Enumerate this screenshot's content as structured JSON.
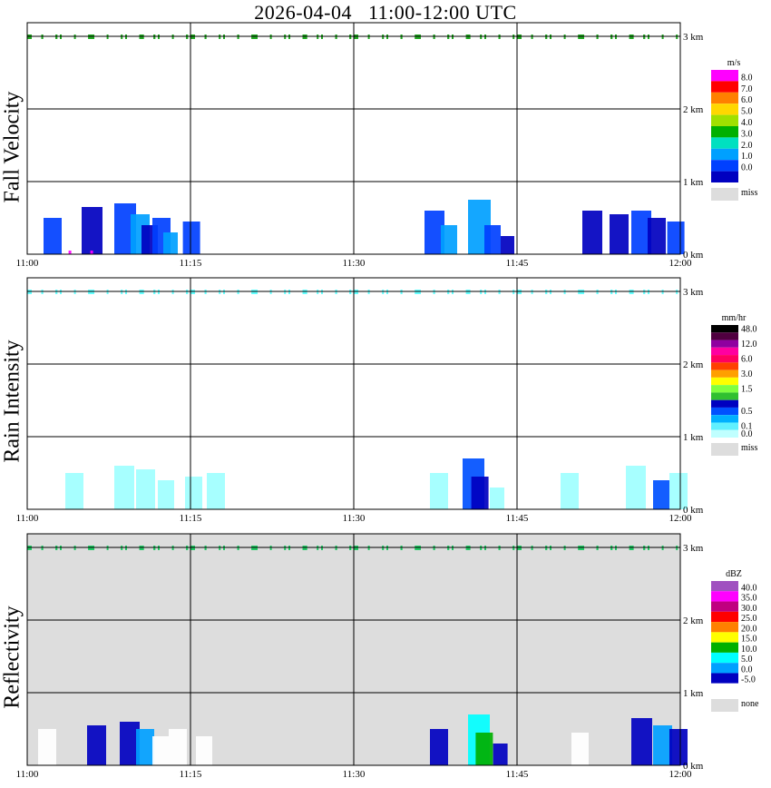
{
  "title": "2026-04-04   11:00-12:00 UTC",
  "chart_data": [
    {
      "type": "heatmap",
      "panel_label": "Fall Velocity",
      "xlim": [
        "11:00",
        "12:00"
      ],
      "x_ticks": [
        "11:00",
        "11:15",
        "11:30",
        "11:45",
        "12:00"
      ],
      "y_ticks": [
        "0 km",
        "1 km",
        "2 km",
        "3 km"
      ],
      "ylim_km": [
        0,
        3.25
      ],
      "background": "#ffffff",
      "legend": {
        "unit": "m/s",
        "entries": [
          {
            "label": "8.0",
            "color": "#ff00ff"
          },
          {
            "label": "7.0",
            "color": "#ff0000"
          },
          {
            "label": "6.0",
            "color": "#ff8000"
          },
          {
            "label": "5.0",
            "color": "#ffd700"
          },
          {
            "label": "4.0",
            "color": "#a0e000"
          },
          {
            "label": "3.0",
            "color": "#00b000"
          },
          {
            "label": "2.0",
            "color": "#00e0c0"
          },
          {
            "label": "1.0",
            "color": "#00a0ff"
          },
          {
            "label": "0.0",
            "color": "#0040ff"
          },
          {
            "label": "",
            "color": "#0000c0"
          }
        ],
        "miss_label": "miss",
        "miss_color": "#dddddd"
      },
      "top_band_color": "#22aa22",
      "cells": [
        {
          "t": 1.5,
          "h": 0.5,
          "v": "#0040ff"
        },
        {
          "t": 5.0,
          "h": 0.65,
          "v": "#0000c0"
        },
        {
          "t": 8.0,
          "h": 0.7,
          "v": "#0040ff"
        },
        {
          "t": 9.5,
          "h": 0.55,
          "v": "#00a0ff"
        },
        {
          "t": 10.5,
          "h": 0.4,
          "v": "#0000c0"
        },
        {
          "t": 11.5,
          "h": 0.5,
          "v": "#0040ff"
        },
        {
          "t": 12.5,
          "h": 0.3,
          "v": "#00a0ff"
        },
        {
          "t": 14.3,
          "h": 0.45,
          "v": "#0040ff"
        },
        {
          "t": 36.5,
          "h": 0.6,
          "v": "#0040ff"
        },
        {
          "t": 38.0,
          "h": 0.4,
          "v": "#00a0ff"
        },
        {
          "t": 40.5,
          "h": 0.75,
          "v": "#00a0ff"
        },
        {
          "t": 42.0,
          "h": 0.4,
          "v": "#0040ff"
        },
        {
          "t": 43.5,
          "h": 0.25,
          "v": "#0000c0"
        },
        {
          "t": 51.0,
          "h": 0.6,
          "v": "#0000c0"
        },
        {
          "t": 53.5,
          "h": 0.55,
          "v": "#0000c0"
        },
        {
          "t": 55.5,
          "h": 0.6,
          "v": "#0040ff"
        },
        {
          "t": 57.0,
          "h": 0.5,
          "v": "#0000c0"
        },
        {
          "t": 58.8,
          "h": 0.45,
          "v": "#0040ff"
        },
        {
          "t": 3.8,
          "h": 0.05,
          "v": "#ff00ff"
        },
        {
          "t": 5.8,
          "h": 0.05,
          "v": "#ff00ff"
        }
      ]
    },
    {
      "type": "heatmap",
      "panel_label": "Rain Intensity",
      "xlim": [
        "11:00",
        "12:00"
      ],
      "x_ticks": [
        "11:00",
        "11:15",
        "11:30",
        "11:45",
        "12:00"
      ],
      "y_ticks": [
        "0 km",
        "1 km",
        "2 km",
        "3 km"
      ],
      "ylim_km": [
        0,
        3.25
      ],
      "background": "#ffffff",
      "legend": {
        "unit": "mm/hr",
        "entries": [
          {
            "label": "48.0",
            "color": "#000000"
          },
          {
            "label": "",
            "color": "#500040"
          },
          {
            "label": "12.0",
            "color": "#9000a0"
          },
          {
            "label": "",
            "color": "#ff00a0"
          },
          {
            "label": "6.0",
            "color": "#ff0060"
          },
          {
            "label": "",
            "color": "#ff4000"
          },
          {
            "label": "3.0",
            "color": "#ffa000"
          },
          {
            "label": "",
            "color": "#ffff00"
          },
          {
            "label": "1.5",
            "color": "#80ff40"
          },
          {
            "label": "",
            "color": "#30c030"
          },
          {
            "label": "",
            "color": "#0000c0"
          },
          {
            "label": "0.5",
            "color": "#0050ff"
          },
          {
            "label": "",
            "color": "#00b0ff"
          },
          {
            "label": "0.1",
            "color": "#60f0ff"
          },
          {
            "label": "0.0",
            "color": "#c0ffff"
          }
        ],
        "miss_label": "miss",
        "miss_color": "#dddddd"
      },
      "top_band_color": "#66ffff",
      "cells": [
        {
          "t": 3.5,
          "h": 0.5,
          "v": "#a0ffff"
        },
        {
          "t": 8.0,
          "h": 0.6,
          "v": "#a0ffff"
        },
        {
          "t": 10.0,
          "h": 0.55,
          "v": "#a0ffff"
        },
        {
          "t": 12.0,
          "h": 0.4,
          "v": "#a0ffff"
        },
        {
          "t": 14.5,
          "h": 0.45,
          "v": "#a0ffff"
        },
        {
          "t": 16.5,
          "h": 0.5,
          "v": "#a0ffff"
        },
        {
          "t": 37.0,
          "h": 0.5,
          "v": "#a0ffff"
        },
        {
          "t": 40.0,
          "h": 0.7,
          "v": "#0050ff"
        },
        {
          "t": 40.8,
          "h": 0.45,
          "v": "#0000c0"
        },
        {
          "t": 42.5,
          "h": 0.3,
          "v": "#a0ffff"
        },
        {
          "t": 49.0,
          "h": 0.5,
          "v": "#a0ffff"
        },
        {
          "t": 55.0,
          "h": 0.6,
          "v": "#a0ffff"
        },
        {
          "t": 57.5,
          "h": 0.4,
          "v": "#0050ff"
        },
        {
          "t": 59.0,
          "h": 0.5,
          "v": "#a0ffff"
        }
      ]
    },
    {
      "type": "heatmap",
      "panel_label": "Reflectivity",
      "xlim": [
        "11:00",
        "12:00"
      ],
      "x_ticks": [
        "11:00",
        "11:15",
        "11:30",
        "11:45",
        "12:00"
      ],
      "y_ticks": [
        "0 km",
        "1 km",
        "2 km",
        "3 km"
      ],
      "ylim_km": [
        0,
        3.25
      ],
      "background": "#dddddd",
      "legend": {
        "unit": "dBZ",
        "entries": [
          {
            "label": "40.0",
            "color": "#a050c0"
          },
          {
            "label": "35.0",
            "color": "#ff00ff"
          },
          {
            "label": "30.0",
            "color": "#c00080"
          },
          {
            "label": "25.0",
            "color": "#ff0000"
          },
          {
            "label": "20.0",
            "color": "#ff8000"
          },
          {
            "label": "15.0",
            "color": "#ffff00"
          },
          {
            "label": "10.0",
            "color": "#00b000"
          },
          {
            "label": "5.0",
            "color": "#00ffff"
          },
          {
            "label": "0.0",
            "color": "#00a0ff"
          },
          {
            "label": "-5.0",
            "color": "#0000c0"
          },
          {
            "label": "",
            "color": "#ffffff"
          }
        ],
        "miss_label": "none",
        "miss_color": "#dddddd"
      },
      "top_band_color": "#22cc66",
      "cells": [
        {
          "t": 1.0,
          "h": 0.5,
          "v": "#ffffff"
        },
        {
          "t": 5.5,
          "h": 0.55,
          "v": "#0000c0"
        },
        {
          "t": 8.5,
          "h": 0.6,
          "v": "#0000c0"
        },
        {
          "t": 10.0,
          "h": 0.5,
          "v": "#00a0ff"
        },
        {
          "t": 11.5,
          "h": 0.4,
          "v": "#ffffff"
        },
        {
          "t": 13.0,
          "h": 0.5,
          "v": "#ffffff"
        },
        {
          "t": 15.5,
          "h": 0.4,
          "v": "#ffffff"
        },
        {
          "t": 37.0,
          "h": 0.5,
          "v": "#0000c0"
        },
        {
          "t": 40.5,
          "h": 0.7,
          "v": "#00ffff"
        },
        {
          "t": 41.2,
          "h": 0.45,
          "v": "#00b000"
        },
        {
          "t": 42.8,
          "h": 0.3,
          "v": "#0000c0"
        },
        {
          "t": 50.0,
          "h": 0.45,
          "v": "#ffffff"
        },
        {
          "t": 55.5,
          "h": 0.65,
          "v": "#0000c0"
        },
        {
          "t": 57.5,
          "h": 0.55,
          "v": "#00a0ff"
        },
        {
          "t": 59.0,
          "h": 0.5,
          "v": "#0000c0"
        }
      ]
    }
  ]
}
